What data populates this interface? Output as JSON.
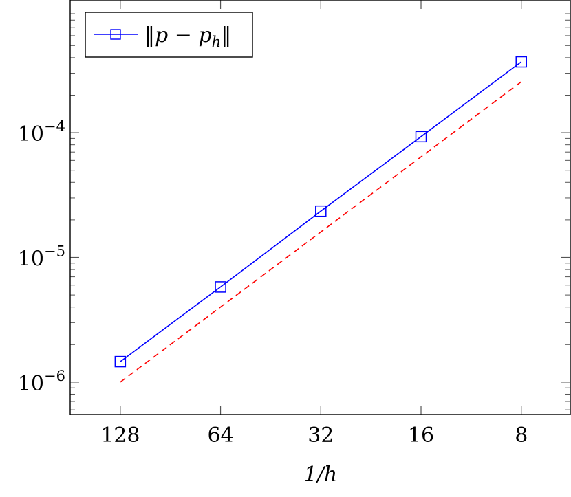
{
  "chart_data": {
    "type": "line",
    "xlabel": "1/h",
    "x_scale": "log",
    "x_reversed": true,
    "y_scale": "log",
    "x_ticks": [
      128,
      64,
      32,
      16,
      8
    ],
    "y_ticks": [
      {
        "value": 1e-06,
        "base": "10",
        "exp": "−6"
      },
      {
        "value": 1e-05,
        "base": "10",
        "exp": "−5"
      },
      {
        "value": 0.0001,
        "base": "10",
        "exp": "−4"
      }
    ],
    "xlim": [
      181,
      5.7
    ],
    "ylim": [
      5.5e-07,
      0.00116
    ],
    "grid": false,
    "legend_position": "top-left",
    "series": [
      {
        "name_parts": [
          "‖",
          "p",
          " − ",
          "p",
          "h",
          "‖"
        ],
        "color": "#0000ff",
        "marker": "square",
        "style": "solid",
        "x": [
          128,
          64,
          32,
          16,
          8
        ],
        "y": [
          1.46e-06,
          5.8e-06,
          2.35e-05,
          9.3e-05,
          0.00037
        ]
      },
      {
        "color": "#ff0000",
        "marker": "none",
        "style": "dashed",
        "x": [
          128,
          8
        ],
        "y": [
          1e-06,
          0.000256
        ]
      }
    ]
  }
}
